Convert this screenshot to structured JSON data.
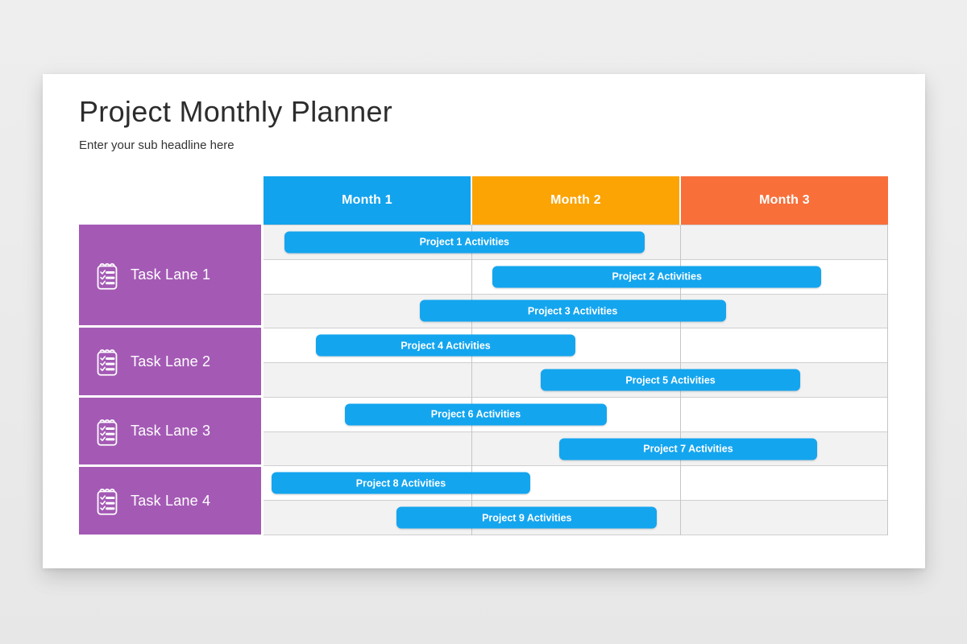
{
  "page": {
    "background": "#e9e9e9",
    "card_background": "#ffffff"
  },
  "header": {
    "title": "Project Monthly Planner",
    "subtitle": "Enter your sub headline here"
  },
  "planner": {
    "months": [
      {
        "label": "Month 1",
        "color": "#12a3ee"
      },
      {
        "label": "Month 2",
        "color": "#fba404"
      },
      {
        "label": "Month 3",
        "color": "#f86f3a"
      }
    ],
    "lane_color": "#a45ab5",
    "bar_color": "#14a5ef",
    "row_shade_color": "#f2f2f2",
    "grid_line_color": "#c5c5c5",
    "lanes": [
      {
        "label": "Task Lane 1",
        "icon": "checklist-notepad-icon",
        "rows": 3
      },
      {
        "label": "Task Lane 2",
        "icon": "checklist-notepad-icon",
        "rows": 2
      },
      {
        "label": "Task Lane 3",
        "icon": "checklist-notepad-icon",
        "rows": 2
      },
      {
        "label": "Task Lane 4",
        "icon": "checklist-notepad-icon",
        "rows": 2
      }
    ]
  },
  "chart_data": {
    "type": "bar",
    "subtype": "gantt",
    "title": "Project Monthly Planner",
    "x_categories": [
      "Month 1",
      "Month 2",
      "Month 3"
    ],
    "xlim": [
      0,
      3
    ],
    "lanes": [
      "Task Lane 1",
      "Task Lane 2",
      "Task Lane 3",
      "Task Lane 4"
    ],
    "bars": [
      {
        "label": "Project 1 Activities",
        "lane": "Task Lane 1",
        "start_month": 0.1,
        "end_month": 1.83
      },
      {
        "label": "Project 2 Activities",
        "lane": "Task Lane 1",
        "start_month": 1.1,
        "end_month": 2.68
      },
      {
        "label": "Project 3 Activities",
        "lane": "Task Lane 1",
        "start_month": 0.75,
        "end_month": 2.22
      },
      {
        "label": "Project 4 Activities",
        "lane": "Task Lane 2",
        "start_month": 0.25,
        "end_month": 1.5
      },
      {
        "label": "Project 5 Activities",
        "lane": "Task Lane 2",
        "start_month": 1.33,
        "end_month": 2.58
      },
      {
        "label": "Project 6 Activities",
        "lane": "Task Lane 3",
        "start_month": 0.39,
        "end_month": 1.65
      },
      {
        "label": "Project 7 Activities",
        "lane": "Task Lane 3",
        "start_month": 1.42,
        "end_month": 2.66
      },
      {
        "label": "Project 8 Activities",
        "lane": "Task Lane 4",
        "start_month": 0.04,
        "end_month": 1.28
      },
      {
        "label": "Project 9 Activities",
        "lane": "Task Lane 4",
        "start_month": 0.64,
        "end_month": 1.89
      }
    ]
  }
}
